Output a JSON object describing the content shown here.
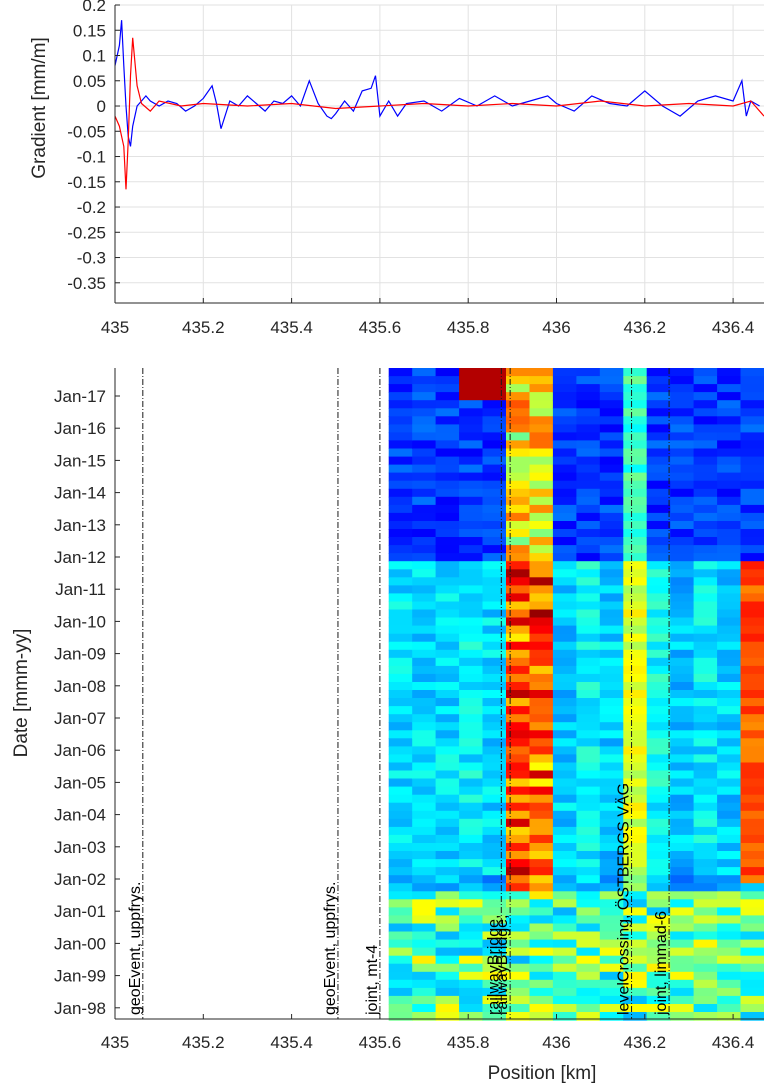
{
  "chart_data": [
    {
      "type": "line",
      "title": "",
      "xlabel": "",
      "ylabel": "Gradient [mm/m]",
      "xlim": [
        435,
        436.47
      ],
      "ylim": [
        -0.39,
        0.2
      ],
      "grid": true,
      "x_ticks": [
        "435",
        "435.2",
        "435.4",
        "435.6",
        "435.8",
        "436",
        "436.2",
        "436.4"
      ],
      "y_ticks": [
        "0.2",
        "0.15",
        "0.1",
        "0.05",
        "0",
        "-0.05",
        "-0.1",
        "-0.15",
        "-0.2",
        "-0.25",
        "-0.3",
        "-0.35"
      ],
      "series": [
        {
          "color": "#0000ff",
          "x": [
            435.0,
            435.01,
            435.015,
            435.02,
            435.025,
            435.03,
            435.035,
            435.04,
            435.05,
            435.06,
            435.07,
            435.08,
            435.1,
            435.12,
            435.14,
            435.16,
            435.18,
            435.2,
            435.22,
            435.23,
            435.24,
            435.26,
            435.28,
            435.3,
            435.32,
            435.34,
            435.36,
            435.38,
            435.4,
            435.42,
            435.44,
            435.46,
            435.48,
            435.49,
            435.5,
            435.52,
            435.54,
            435.56,
            435.58,
            435.59,
            435.6,
            435.62,
            435.64,
            435.66,
            435.7,
            435.74,
            435.78,
            435.82,
            435.86,
            435.9,
            435.94,
            435.98,
            436.0,
            436.04,
            436.08,
            436.12,
            436.16,
            436.2,
            436.24,
            436.28,
            436.32,
            436.36,
            436.4,
            436.42,
            436.43,
            436.44,
            436.46
          ],
          "values": [
            0.08,
            0.12,
            0.17,
            0.08,
            0.0,
            -0.06,
            -0.08,
            -0.04,
            0.0,
            0.01,
            0.02,
            0.01,
            0.0,
            0.01,
            0.005,
            -0.01,
            0.0,
            0.015,
            0.04,
            0.005,
            -0.045,
            0.01,
            0.0,
            0.02,
            0.005,
            -0.01,
            0.01,
            0.005,
            0.02,
            0.0,
            0.05,
            0.005,
            -0.02,
            -0.025,
            -0.015,
            0.01,
            -0.01,
            0.03,
            0.035,
            0.06,
            -0.02,
            0.01,
            -0.02,
            0.005,
            0.01,
            -0.01,
            0.015,
            0.0,
            0.02,
            0.0,
            0.01,
            0.02,
            0.005,
            -0.01,
            0.02,
            0.005,
            0.0,
            0.03,
            0.0,
            -0.02,
            0.01,
            0.02,
            0.01,
            0.05,
            -0.02,
            0.01,
            0.0
          ]
        },
        {
          "color": "#ff0000",
          "x": [
            435.0,
            435.01,
            435.02,
            435.025,
            435.03,
            435.035,
            435.04,
            435.05,
            435.06,
            435.08,
            435.1,
            435.15,
            435.2,
            435.3,
            435.4,
            435.5,
            435.6,
            435.7,
            435.8,
            435.9,
            436.0,
            436.1,
            436.2,
            436.3,
            436.4,
            436.44,
            436.47
          ],
          "values": [
            -0.02,
            -0.04,
            -0.08,
            -0.165,
            -0.07,
            0.06,
            0.135,
            0.04,
            0.005,
            -0.01,
            0.01,
            0.0,
            0.005,
            0.0,
            0.005,
            -0.005,
            0.0,
            0.005,
            0.0,
            0.005,
            0.0,
            0.01,
            0.0,
            0.005,
            0.0,
            0.01,
            -0.02
          ]
        }
      ]
    },
    {
      "type": "heatmap",
      "title": "",
      "xlabel": "Position [km]",
      "ylabel": "Date [mmm-yy]",
      "xlim": [
        435,
        436.47
      ],
      "ylim": [
        "Jan-98",
        "Jan-17"
      ],
      "x_ticks": [
        "435",
        "435.2",
        "435.4",
        "435.6",
        "435.8",
        "436",
        "436.2",
        "436.4"
      ],
      "y_ticks": [
        "Jan-17",
        "Jan-16",
        "Jan-15",
        "Jan-14",
        "Jan-13",
        "Jan-12",
        "Jan-11",
        "Jan-10",
        "Jan-09",
        "Jan-08",
        "Jan-07",
        "Jan-06",
        "Jan-05",
        "Jan-04",
        "Jan-03",
        "Jan-02",
        "Jan-01",
        "Jan-00",
        "Jan-99",
        "Jan-98"
      ],
      "data_x_start": 435.62,
      "colormap": "jet",
      "annotations": [
        {
          "x": 435.063,
          "label": "geoEvent, uppfrys."
        },
        {
          "x": 435.505,
          "label": "geoEvent, uppfrys."
        },
        {
          "x": 435.6,
          "label": "joint, mt-4"
        },
        {
          "x": 435.875,
          "label": "railwayBridge,"
        },
        {
          "x": 435.895,
          "label": "railwayBridge,"
        },
        {
          "x": 436.17,
          "label": "levelCrossing, ÖSTBERGS VÄG"
        },
        {
          "x": 436.255,
          "label": "joint, limmad-6"
        }
      ]
    }
  ]
}
